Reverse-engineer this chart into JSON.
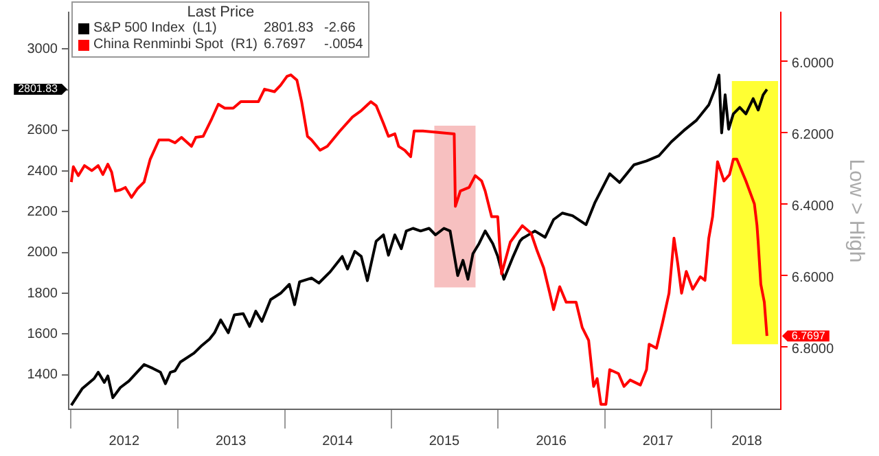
{
  "chart_data": {
    "type": "line",
    "legend_title": "Last Price",
    "y2label": "Low > High",
    "legend": "top left",
    "grid": false,
    "xlim": [
      "2011-12-24",
      "2018-08-25"
    ],
    "xticks": [
      {
        "value": "2012-01-01",
        "label": null
      },
      {
        "value": "2012-07-01",
        "label": "2012"
      },
      {
        "value": "2013-01-01",
        "label": null
      },
      {
        "value": "2013-07-01",
        "label": "2013"
      },
      {
        "value": "2014-01-01",
        "label": null
      },
      {
        "value": "2014-07-01",
        "label": "2014"
      },
      {
        "value": "2015-01-01",
        "label": null
      },
      {
        "value": "2015-07-01",
        "label": "2015"
      },
      {
        "value": "2016-01-01",
        "label": null
      },
      {
        "value": "2016-07-01",
        "label": "2016"
      },
      {
        "value": "2017-01-01",
        "label": null
      },
      {
        "value": "2017-07-01",
        "label": "2017"
      },
      {
        "value": "2018-01-01",
        "label": null
      },
      {
        "value": "2018-05-01",
        "label": "2018"
      }
    ],
    "ylim": [
      1230,
      3180
    ],
    "yticks": [
      1400,
      1600,
      1800,
      2000,
      2200,
      2400,
      2600,
      {
        "value": 2800,
        "label": null
      },
      3000
    ],
    "y2lim": [
      6.975,
      5.864
    ],
    "y2ticks": [
      {
        "value": 6,
        "label": "6.0000"
      },
      {
        "value": 6.2,
        "label": "6.2000"
      },
      {
        "value": 6.4,
        "label": "6.4000"
      },
      {
        "value": 6.6,
        "label": "6.6000"
      },
      {
        "value": 6.8,
        "label": "6.8000"
      }
    ],
    "bands": [
      {
        "axis": "x",
        "from": "2015-05-28",
        "to": "2015-10-16",
        "color": "#f7c0c0"
      },
      {
        "axis": "x",
        "from": "2018-03-11",
        "to": "2018-08-16",
        "color": "#ffff33"
      }
    ],
    "annotations": [
      "2801.83",
      "-2.66",
      "6.7697",
      "-.0054"
    ],
    "series": [
      {
        "name": "S&P 500 Index  (L1)",
        "color": "#000000",
        "x": [
          "2012-01-02",
          "2012-02-08",
          "2012-03-20",
          "2012-04-03",
          "2012-04-24",
          "2012-05-06",
          "2012-05-23",
          "2012-06-18",
          "2012-07-17",
          "2012-09-07",
          "2012-10-07",
          "2012-11-02",
          "2012-11-19",
          "2012-12-06",
          "2012-12-22",
          "2013-01-09",
          "2013-02-25",
          "2013-03-24",
          "2013-04-19",
          "2013-05-06",
          "2013-05-27",
          "2013-06-22",
          "2013-07-13",
          "2013-08-12",
          "2013-09-03",
          "2013-09-24",
          "2013-10-15",
          "2013-11-14",
          "2013-12-18",
          "2014-01-17",
          "2014-02-04",
          "2014-02-21",
          "2014-04-03",
          "2014-04-28",
          "2014-06-06",
          "2014-07-17",
          "2014-08-04",
          "2014-08-29",
          "2014-09-20",
          "2014-10-11",
          "2014-11-10",
          "2014-12-05",
          "2014-12-22",
          "2015-01-13",
          "2015-02-04",
          "2015-02-21",
          "2015-03-16",
          "2015-04-11",
          "2015-05-10",
          "2015-06-01",
          "2015-06-30",
          "2015-07-21",
          "2015-08-16",
          "2015-09-03",
          "2015-09-20",
          "2015-10-07",
          "2015-10-28",
          "2015-11-18",
          "2015-12-14",
          "2015-12-31",
          "2016-01-21",
          "2016-02-20",
          "2016-03-16",
          "2016-03-24",
          "2016-05-06",
          "2016-06-10",
          "2016-07-09",
          "2016-08-08",
          "2016-09-12",
          "2016-10-28",
          "2016-11-27",
          "2017-01-17",
          "2017-02-20",
          "2017-04-10",
          "2017-05-23",
          "2017-07-04",
          "2017-08-16",
          "2017-09-28",
          "2017-11-10",
          "2017-12-22",
          "2018-01-13",
          "2018-01-26",
          "2018-02-04",
          "2018-02-16",
          "2018-02-28",
          "2018-03-16",
          "2018-04-07",
          "2018-04-28",
          "2018-05-23",
          "2018-06-09",
          "2018-06-26",
          "2018-07-09"
        ],
        "values": [
          1250,
          1331,
          1381,
          1412,
          1362,
          1394,
          1287,
          1337,
          1369,
          1450,
          1431,
          1412,
          1356,
          1412,
          1419,
          1462,
          1506,
          1544,
          1575,
          1606,
          1669,
          1606,
          1694,
          1700,
          1637,
          1712,
          1662,
          1769,
          1800,
          1844,
          1744,
          1856,
          1875,
          1850,
          1906,
          1981,
          1919,
          2006,
          1981,
          1862,
          2056,
          2087,
          1987,
          2087,
          2019,
          2106,
          2119,
          2106,
          2119,
          2087,
          2119,
          2106,
          1887,
          1962,
          1869,
          1994,
          2044,
          2106,
          2044,
          1981,
          1869,
          1975,
          2056,
          2069,
          2106,
          2075,
          2162,
          2194,
          2181,
          2137,
          2244,
          2387,
          2344,
          2431,
          2450,
          2475,
          2544,
          2600,
          2650,
          2725,
          2806,
          2872,
          2588,
          2775,
          2606,
          2681,
          2713,
          2681,
          2756,
          2700,
          2775,
          2801.83
        ]
      },
      {
        "name": "China Renminbi Spot  (R1)",
        "color": "#ff0000",
        "axis": "y2",
        "x": [
          "2012-01-02",
          "2012-01-09",
          "2012-01-26",
          "2012-02-16",
          "2012-03-12",
          "2012-04-03",
          "2012-04-19",
          "2012-05-06",
          "2012-05-19",
          "2012-06-01",
          "2012-06-18",
          "2012-07-05",
          "2012-07-26",
          "2012-08-16",
          "2012-09-07",
          "2012-09-28",
          "2012-10-28",
          "2012-12-01",
          "2012-12-22",
          "2013-01-13",
          "2013-02-16",
          "2013-03-03",
          "2013-03-28",
          "2013-04-27",
          "2013-05-19",
          "2013-06-10",
          "2013-07-09",
          "2013-08-04",
          "2013-10-03",
          "2013-10-24",
          "2013-11-27",
          "2013-12-18",
          "2014-01-09",
          "2014-01-22",
          "2014-02-12",
          "2014-02-28",
          "2014-03-20",
          "2014-04-03",
          "2014-05-02",
          "2014-05-27",
          "2014-07-09",
          "2014-08-21",
          "2014-09-20",
          "2014-10-23",
          "2014-11-10",
          "2014-12-05",
          "2014-12-22",
          "2015-01-13",
          "2015-01-26",
          "2015-02-16",
          "2015-03-08",
          "2015-03-20",
          "2015-04-19",
          "2015-08-04",
          "2015-08-08",
          "2015-08-25",
          "2015-09-24",
          "2015-10-15",
          "2015-11-06",
          "2015-11-18",
          "2015-12-10",
          "2015-12-31",
          "2016-01-13",
          "2016-02-12",
          "2016-03-24",
          "2016-04-23",
          "2016-05-14",
          "2016-06-05",
          "2016-06-26",
          "2016-07-09",
          "2016-07-30",
          "2016-08-21",
          "2016-09-24",
          "2016-10-15",
          "2016-11-06",
          "2016-11-23",
          "2016-12-05",
          "2016-12-18",
          "2017-01-04",
          "2017-01-17",
          "2017-02-16",
          "2017-03-07",
          "2017-03-28",
          "2017-05-02",
          "2017-05-23",
          "2017-06-01",
          "2017-06-26",
          "2017-07-17",
          "2017-08-08",
          "2017-08-25",
          "2017-09-07",
          "2017-09-20",
          "2017-10-06",
          "2017-10-28",
          "2017-11-23",
          "2017-12-09",
          "2017-12-22",
          "2018-01-04",
          "2018-01-21",
          "2018-02-12",
          "2018-03-03",
          "2018-03-16",
          "2018-03-28",
          "2018-04-28",
          "2018-05-27",
          "2018-06-05",
          "2018-06-09",
          "2018-06-18",
          "2018-06-30",
          "2018-07-09"
        ],
        "values": [
          6.339,
          6.296,
          6.321,
          6.293,
          6.307,
          6.293,
          6.318,
          6.289,
          6.311,
          6.364,
          6.361,
          6.354,
          6.382,
          6.357,
          6.339,
          6.275,
          6.221,
          6.221,
          6.229,
          6.214,
          6.239,
          6.214,
          6.211,
          6.161,
          6.121,
          6.132,
          6.132,
          6.114,
          6.114,
          6.079,
          6.086,
          6.068,
          6.043,
          6.039,
          6.054,
          6.114,
          6.211,
          6.221,
          6.25,
          6.239,
          6.196,
          6.157,
          6.139,
          6.114,
          6.125,
          6.175,
          6.211,
          6.204,
          6.239,
          6.25,
          6.268,
          6.196,
          6.196,
          6.204,
          6.407,
          6.364,
          6.354,
          6.321,
          6.336,
          6.364,
          6.436,
          6.436,
          6.596,
          6.507,
          6.461,
          6.482,
          6.532,
          6.579,
          6.65,
          6.696,
          6.632,
          6.675,
          6.675,
          6.746,
          6.782,
          6.911,
          6.889,
          6.961,
          6.961,
          6.864,
          6.875,
          6.911,
          6.893,
          6.907,
          6.864,
          6.793,
          6.804,
          6.732,
          6.65,
          6.496,
          6.568,
          6.65,
          6.589,
          6.639,
          6.604,
          6.614,
          6.496,
          6.436,
          6.282,
          6.336,
          6.318,
          6.275,
          6.275,
          6.336,
          6.4,
          6.461,
          6.507,
          6.625,
          6.675,
          6.7697
        ]
      }
    ]
  }
}
